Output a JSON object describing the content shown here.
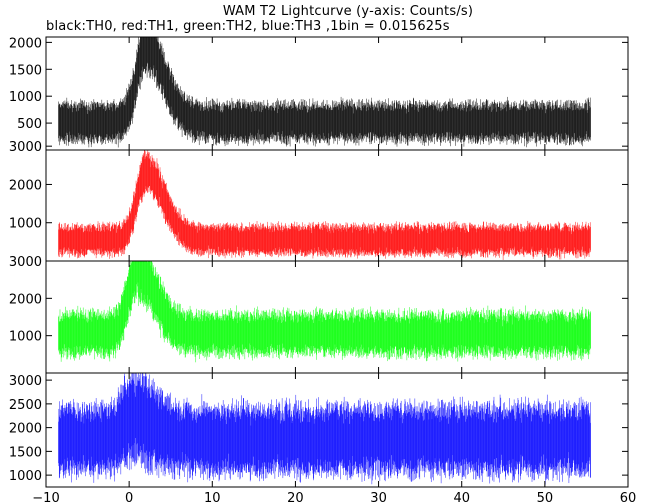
{
  "chart_data": {
    "type": "line",
    "title": "WAM T2 Lightcurve (y-axis: Counts/s)",
    "subtitle": "black:TH0, red:TH1, green:TH2, blue:TH3 ,1bin = 0.015625s",
    "xlabel": "",
    "xlim": [
      -10,
      60
    ],
    "x_ticks": [
      -10,
      0,
      10,
      20,
      30,
      40,
      50,
      60
    ],
    "data_x_range": [
      -8.5,
      55.5
    ],
    "bin_seconds": 0.015625,
    "grid": false,
    "legend": "none",
    "series": [
      {
        "name": "TH0",
        "color": "#000000",
        "ylim": [
          0,
          2100
        ],
        "y_ticks": [
          500,
          1000,
          1500,
          2000
        ],
        "baseline": 520,
        "noise_spread": 500,
        "peak": {
          "x": 2,
          "value": 1400
        }
      },
      {
        "name": "TH1",
        "color": "#ff0000",
        "ylim": [
          0,
          2900
        ],
        "y_ticks": [
          1000,
          2000,
          3000
        ],
        "baseline": 550,
        "noise_spread": 550,
        "peak": {
          "x": 2,
          "value": 1750
        }
      },
      {
        "name": "TH2",
        "color": "#00ff00",
        "ylim": [
          0,
          3000
        ],
        "y_ticks": [
          1000,
          2000,
          3000
        ],
        "baseline": 1050,
        "noise_spread": 800,
        "peak": {
          "x": 1,
          "value": 1700
        }
      },
      {
        "name": "TH3",
        "color": "#0000ff",
        "ylim": [
          750,
          3150
        ],
        "y_ticks": [
          1000,
          1500,
          2000,
          2500,
          3000
        ],
        "baseline": 1750,
        "noise_spread": 1000,
        "peak": {
          "x": 0.5,
          "value": 500
        }
      }
    ]
  }
}
